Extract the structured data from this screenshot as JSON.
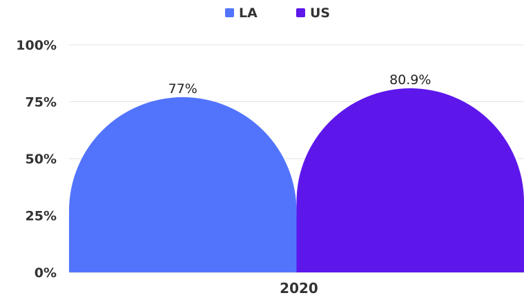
{
  "chart_data": {
    "type": "bar",
    "title": "",
    "xlabel": "",
    "ylabel": "",
    "categories": [
      "2020"
    ],
    "series": [
      {
        "name": "LA",
        "values": [
          77
        ],
        "color": "#5274fd",
        "data_label": "77%"
      },
      {
        "name": "US",
        "values": [
          80.9
        ],
        "color": "#5d17eb",
        "data_label": "80.9%"
      }
    ],
    "ylim": [
      0,
      100
    ],
    "yticks": [
      {
        "value": 0,
        "label": "0%"
      },
      {
        "value": 25,
        "label": "25%"
      },
      {
        "value": 50,
        "label": "50%"
      },
      {
        "value": 75,
        "label": "75%"
      },
      {
        "value": 100,
        "label": "100%"
      }
    ],
    "grid": true,
    "legend_position": "top",
    "bar_shape": "rounded-top"
  }
}
